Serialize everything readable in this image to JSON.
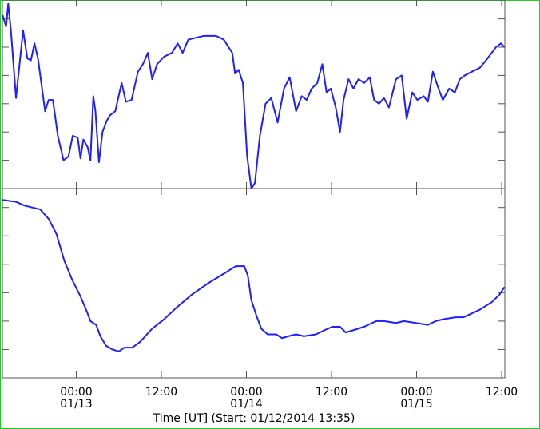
{
  "chart_data": [
    {
      "type": "line",
      "color": "#1f1fff",
      "xlim": [
        13.58,
        84.45
      ],
      "ylim": [
        0,
        100
      ],
      "yticks": [
        0,
        15,
        30,
        45,
        60,
        75,
        90
      ],
      "x": [
        13.6,
        14.1,
        14.4,
        14.8,
        15.5,
        16.5,
        17.1,
        17.6,
        18.1,
        18.6,
        19.6,
        20.1,
        20.7,
        21.4,
        22.2,
        22.9,
        23.5,
        24.2,
        24.6,
        25.0,
        25.6,
        26.0,
        26.4,
        26.7,
        27.2,
        27.7,
        28.3,
        28.8,
        29.5,
        30.4,
        31.0,
        31.8,
        32.7,
        33.4,
        34.1,
        34.7,
        35.4,
        36.4,
        37.5,
        38.3,
        39.0,
        39.8,
        40.9,
        42.0,
        43.7,
        44.8,
        46.0,
        46.4,
        46.9,
        47.5,
        48.1,
        48.7,
        49.2,
        49.9,
        50.7,
        51.5,
        52.4,
        53.3,
        54.1,
        55.0,
        55.8,
        56.5,
        57.2,
        58.0,
        58.7,
        59.3,
        59.9,
        60.6,
        61.2,
        61.7,
        62.4,
        63.1,
        63.8,
        64.6,
        65.4,
        66.0,
        66.7,
        67.4,
        68.1,
        68.5,
        69.1,
        69.9,
        70.6,
        71.4,
        72.1,
        73.0,
        73.6,
        74.3,
        75.0,
        75.7,
        76.6,
        77.4,
        78.1,
        78.8,
        79.8,
        80.9,
        81.8,
        82.6,
        83.2,
        83.9,
        84.4
      ],
      "values": [
        92,
        86,
        98,
        83,
        48,
        84,
        69,
        68,
        77,
        69,
        41,
        47,
        47,
        28,
        15,
        17,
        28,
        27,
        16,
        26,
        22,
        15,
        49,
        41,
        14,
        30,
        36,
        39,
        41,
        56,
        46,
        47,
        62,
        66,
        72,
        58,
        66,
        70,
        72,
        77,
        72,
        79,
        80,
        81,
        81,
        79,
        72,
        61,
        63,
        56,
        17,
        0,
        3,
        28,
        45,
        48,
        35,
        53,
        59,
        41,
        49,
        47,
        53,
        56,
        66,
        51,
        53,
        43,
        30,
        47,
        58,
        53,
        58,
        56,
        59,
        47,
        45,
        48,
        43,
        49,
        58,
        60,
        37,
        51,
        47,
        49,
        46,
        62,
        54,
        47,
        53,
        51,
        58,
        60,
        62,
        64,
        68,
        72,
        75,
        77,
        75
      ]
    },
    {
      "type": "line",
      "color": "#1f1fff",
      "xlim": [
        13.58,
        84.45
      ],
      "ylim": [
        0,
        100
      ],
      "yticks": [
        0,
        15,
        30,
        45,
        60,
        75,
        90
      ],
      "xticks": [
        {
          "value": 24,
          "label": "00:00\n01/13"
        },
        {
          "value": 36,
          "label": "12:00"
        },
        {
          "value": 48,
          "label": "00:00\n01/14"
        },
        {
          "value": 60,
          "label": "12:00"
        },
        {
          "value": 72,
          "label": "00:00\n01/15"
        },
        {
          "value": 84,
          "label": "12:00"
        }
      ],
      "xlabel": "Time [UT] (Start: 01/12/2014 13:35)",
      "x": [
        13.6,
        15.5,
        16.7,
        18.9,
        20.1,
        21.2,
        22.3,
        23.4,
        24.6,
        25.5,
        26.0,
        26.8,
        27.4,
        28.2,
        29.1,
        30.0,
        30.8,
        31.9,
        33.0,
        34.7,
        36.4,
        38.1,
        40.3,
        42.6,
        44.8,
        46.5,
        47.7,
        48.2,
        48.7,
        49.4,
        50.1,
        51.0,
        52.2,
        53.0,
        53.9,
        55.0,
        56.1,
        57.8,
        58.9,
        60.1,
        61.2,
        62.0,
        62.9,
        64.6,
        66.3,
        67.4,
        69.1,
        70.2,
        71.9,
        73.6,
        74.7,
        75.8,
        77.5,
        78.6,
        80.9,
        82.6,
        83.7,
        84.4
      ],
      "values": [
        94,
        93,
        91,
        89,
        84,
        76,
        62,
        52,
        43,
        35,
        30,
        28,
        22,
        17,
        15,
        14,
        16,
        16,
        19,
        26,
        31,
        37,
        44,
        50,
        55,
        59,
        59,
        54,
        41,
        33,
        26,
        23,
        23,
        21,
        22,
        23,
        22,
        23,
        25,
        27,
        27,
        24,
        25,
        27,
        30,
        30,
        29,
        30,
        29,
        28,
        30,
        31,
        32,
        32,
        36,
        40,
        44,
        48
      ]
    }
  ]
}
